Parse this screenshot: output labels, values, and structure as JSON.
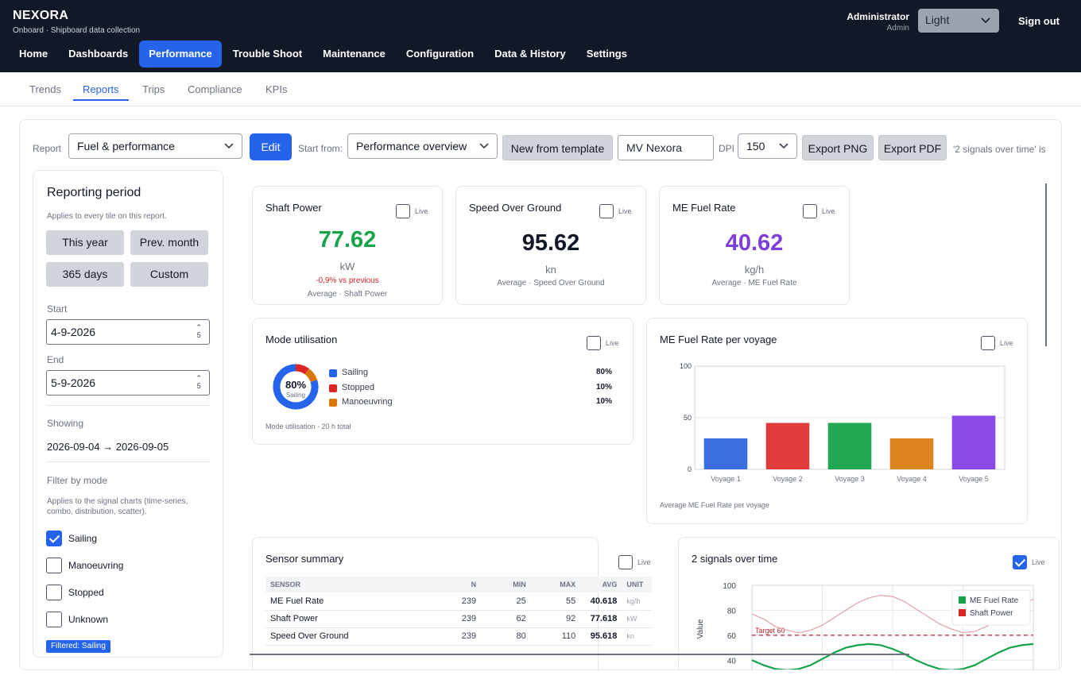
{
  "app": {
    "brand": "NEXORA",
    "subtitle": "Onboard · Shipboard data collection"
  },
  "user": {
    "name": "Administrator",
    "role": "Admin",
    "theme": "Light",
    "signout": "Sign out"
  },
  "nav": [
    "Home",
    "Dashboards",
    "Performance",
    "Trouble Shoot",
    "Maintenance",
    "Configuration",
    "Data & History",
    "Settings"
  ],
  "subtabs": [
    "Trends",
    "Reports",
    "Trips",
    "Compliance",
    "KPIs"
  ],
  "toolbar": {
    "report_label": "Report",
    "report_value": "Fuel & performance",
    "edit": "Edit",
    "start_label": "Start from:",
    "start_value": "Performance overview",
    "new_template": "New from template",
    "vessel": "MV Nexora",
    "dpi_label": "DPI",
    "dpi_value": "150",
    "export_png": "Export PNG",
    "export_pdf": "Export PDF",
    "overflow": "'2 signals over time' is"
  },
  "period": {
    "title": "Reporting period",
    "hint": "Applies to every tile on this report.",
    "this_year": "This year",
    "prev_month": "Prev. month",
    "days365": "365 days",
    "custom": "Custom",
    "start_label": "Start",
    "start_value": "4-9-2026",
    "end_label": "End",
    "end_value": "5-9-2026",
    "spin_top": "⌃",
    "spin_bottom": "5",
    "showing_label": "Showing",
    "showing_value": "2026-09-04 → 2026-09-05",
    "filter_label": "Filter by mode",
    "filter_hint": "Applies to the signal charts (time-series, combo, distribution, scatter).",
    "modes": [
      {
        "label": "Sailing",
        "checked": true
      },
      {
        "label": "Manoeuvring",
        "checked": false
      },
      {
        "label": "Stopped",
        "checked": false
      },
      {
        "label": "Unknown",
        "checked": false
      }
    ],
    "badge": "Filtered: Sailing"
  },
  "live_label": "Live",
  "kpis": [
    {
      "title": "Shaft Power",
      "value": "77.62",
      "unit": "kW",
      "delta": "-0,9% vs previous",
      "foot": "Average · Shaft Power",
      "color": "#16a34a"
    },
    {
      "title": "Speed Over Ground",
      "value": "95.62",
      "unit": "kn",
      "foot": "Average · Speed Over Ground",
      "color": "#111827"
    },
    {
      "title": "ME Fuel Rate",
      "value": "40.62",
      "unit": "kg/h",
      "foot": "Average · ME Fuel Rate",
      "color": "#7e3fd8"
    }
  ],
  "mode_util": {
    "title": "Mode utilisation",
    "center_value": "80%",
    "center_label": "Sailing",
    "items": [
      {
        "label": "Sailing",
        "pct": "80%",
        "value": 80,
        "color": "#2563eb"
      },
      {
        "label": "Stopped",
        "pct": "10%",
        "value": 10,
        "color": "#dc2626"
      },
      {
        "label": "Manoeuvring",
        "pct": "10%",
        "value": 10,
        "color": "#d97706"
      }
    ],
    "foot": "Mode utilisation · 20 h total"
  },
  "bar_tile": {
    "title": "ME Fuel Rate per voyage",
    "foot": "Average ME Fuel Rate per voyage"
  },
  "sensor_summary": {
    "title": "Sensor summary",
    "headers": [
      "SENSOR",
      "N",
      "MIN",
      "MAX",
      "AVG",
      "UNIT"
    ],
    "rows": [
      [
        "ME Fuel Rate",
        "239",
        "25",
        "55",
        "40.618",
        "kg/h"
      ],
      [
        "Shaft Power",
        "239",
        "62",
        "92",
        "77.618",
        "kW"
      ],
      [
        "Speed Over Ground",
        "239",
        "80",
        "110",
        "95.618",
        "kn"
      ]
    ]
  },
  "signals_tile": {
    "title": "2 signals over time",
    "live": true
  },
  "chart_data": [
    {
      "type": "bar",
      "categories": [
        "Voyage 1",
        "Voyage 2",
        "Voyage 3",
        "Voyage 4",
        "Voyage 5"
      ],
      "values": [
        30,
        45,
        45,
        30,
        52
      ],
      "colors": [
        "#3b6fe0",
        "#e03c3c",
        "#22a853",
        "#dd8520",
        "#8b4ae8"
      ],
      "ylim": [
        0,
        100
      ],
      "yticks": [
        0,
        50,
        100
      ],
      "grid": true
    },
    {
      "type": "line",
      "ylabel": "Value",
      "ylim": [
        30,
        100
      ],
      "yticks": [
        40,
        60,
        80,
        100
      ],
      "annotation": {
        "label": "Target 60",
        "value": 60,
        "color": "#c0262d"
      },
      "legend": "top-right",
      "x": [
        0,
        1,
        2,
        3,
        4,
        5,
        6,
        7,
        8,
        9,
        10,
        11,
        12,
        13,
        14,
        15,
        16,
        17,
        18,
        19,
        20,
        21,
        22,
        23,
        24
      ],
      "series": [
        {
          "name": "ME Fuel Rate",
          "color": "#16a34a",
          "values": [
            40,
            36,
            33,
            32,
            33,
            36,
            41,
            46,
            50,
            52,
            53,
            52,
            49,
            45,
            40,
            36,
            33,
            32,
            33,
            36,
            41,
            46,
            50,
            52,
            53
          ]
        },
        {
          "name": "Shaft Power",
          "color": "#e0a0a6",
          "values": [
            77,
            73,
            67,
            64,
            62,
            64,
            68,
            74,
            80,
            86,
            90,
            92,
            91,
            87,
            81,
            75,
            69,
            65,
            62,
            63,
            67,
            73,
            79,
            85,
            89
          ]
        }
      ]
    }
  ]
}
